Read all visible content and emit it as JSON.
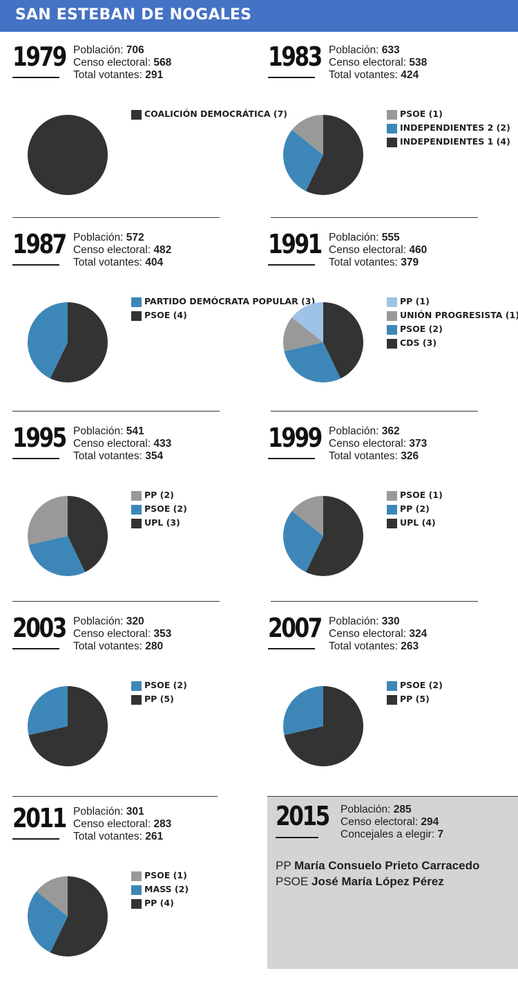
{
  "header": {
    "title": "SAN ESTEBAN DE NOGALES"
  },
  "labels": {
    "poblacion": "Población:",
    "censo": "Censo electoral:",
    "votantes": "Total votantes:",
    "concejales": "Concejales a elegir:"
  },
  "colors": {
    "dark": "#333333",
    "blue": "#3d87b8",
    "gray": "#999999",
    "lightblue": "#9dc3e6",
    "header": "#4472c4",
    "panel": "#d4d4d4"
  },
  "chart_data": [
    {
      "type": "pie",
      "year": "1979",
      "poblacion": "706",
      "censo": "568",
      "votantes": "291",
      "slices": [
        {
          "label": "COALICIÓN DEMOCRÁTICA (7)",
          "value": 7,
          "color": "#333333"
        }
      ]
    },
    {
      "type": "pie",
      "year": "1983",
      "poblacion": "633",
      "censo": "538",
      "votantes": "424",
      "slices": [
        {
          "label": "PSOE (1)",
          "value": 1,
          "color": "#999999"
        },
        {
          "label": "INDEPENDIENTES 2 (2)",
          "value": 2,
          "color": "#3d87b8"
        },
        {
          "label": "INDEPENDIENTES 1 (4)",
          "value": 4,
          "color": "#333333"
        }
      ]
    },
    {
      "type": "pie",
      "year": "1987",
      "poblacion": "572",
      "censo": "482",
      "votantes": "404",
      "slices": [
        {
          "label": "PARTIDO DEMÓCRATA POPULAR (3)",
          "value": 3,
          "color": "#3d87b8"
        },
        {
          "label": "PSOE (4)",
          "value": 4,
          "color": "#333333"
        }
      ]
    },
    {
      "type": "pie",
      "year": "1991",
      "poblacion": "555",
      "censo": "460",
      "votantes": "379",
      "slices": [
        {
          "label": "PP (1)",
          "value": 1,
          "color": "#9dc3e6"
        },
        {
          "label": "UNIÓN PROGRESISTA (1)",
          "value": 1,
          "color": "#999999"
        },
        {
          "label": "PSOE (2)",
          "value": 2,
          "color": "#3d87b8"
        },
        {
          "label": "CDS (3)",
          "value": 3,
          "color": "#333333"
        }
      ]
    },
    {
      "type": "pie",
      "year": "1995",
      "poblacion": "541",
      "censo": "433",
      "votantes": "354",
      "slices": [
        {
          "label": "PP (2)",
          "value": 2,
          "color": "#999999"
        },
        {
          "label": "PSOE (2)",
          "value": 2,
          "color": "#3d87b8"
        },
        {
          "label": "UPL (3)",
          "value": 3,
          "color": "#333333"
        }
      ]
    },
    {
      "type": "pie",
      "year": "1999",
      "poblacion": "362",
      "censo": "373",
      "votantes": "326",
      "slices": [
        {
          "label": "PSOE (1)",
          "value": 1,
          "color": "#999999"
        },
        {
          "label": "PP (2)",
          "value": 2,
          "color": "#3d87b8"
        },
        {
          "label": "UPL (4)",
          "value": 4,
          "color": "#333333"
        }
      ]
    },
    {
      "type": "pie",
      "year": "2003",
      "poblacion": "320",
      "censo": "353",
      "votantes": "280",
      "slices": [
        {
          "label": "PSOE (2)",
          "value": 2,
          "color": "#3d87b8"
        },
        {
          "label": "PP (5)",
          "value": 5,
          "color": "#333333"
        }
      ]
    },
    {
      "type": "pie",
      "year": "2007",
      "poblacion": "330",
      "censo": "324",
      "votantes": "263",
      "slices": [
        {
          "label": "PSOE (2)",
          "value": 2,
          "color": "#3d87b8"
        },
        {
          "label": "PP (5)",
          "value": 5,
          "color": "#333333"
        }
      ]
    },
    {
      "type": "pie",
      "year": "2011",
      "poblacion": "301",
      "censo": "283",
      "votantes": "261",
      "slices": [
        {
          "label": "PSOE (1)",
          "value": 1,
          "color": "#999999"
        },
        {
          "label": "MASS (2)",
          "value": 2,
          "color": "#3d87b8"
        },
        {
          "label": "PP (4)",
          "value": 4,
          "color": "#333333"
        }
      ]
    }
  ],
  "y2015": {
    "year": "2015",
    "poblacion": "285",
    "censo": "294",
    "concejales": "7",
    "candidates": [
      {
        "party": "PP",
        "name": "María Consuelo Prieto Carracedo"
      },
      {
        "party": "PSOE",
        "name": "José María López Pérez"
      }
    ]
  }
}
